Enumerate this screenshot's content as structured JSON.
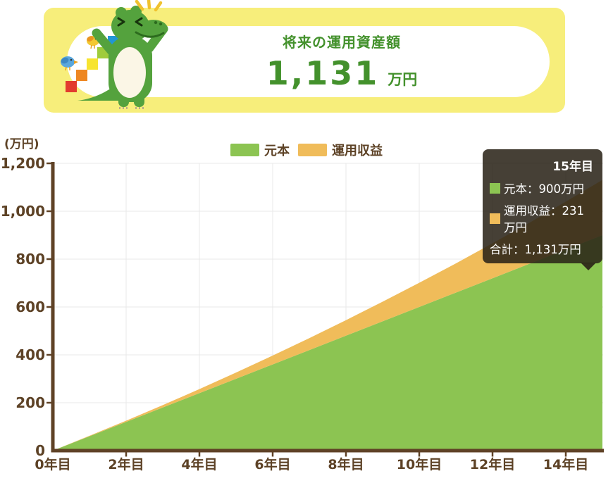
{
  "banner": {
    "title": "将来の運用資産額",
    "amount": "1,131",
    "unit": "万円",
    "bg_color": "#f7ee7b",
    "text_color": "#43912c"
  },
  "icons": {
    "mascot": "crocodile-climbing-colored-stairs",
    "mascot_extras": [
      "blue-bird",
      "yellow-bird",
      "excitement-sparkles"
    ]
  },
  "chart_data": {
    "type": "area",
    "stacked": true,
    "unit_label": "(万円)",
    "x_years": [
      0,
      1,
      2,
      3,
      4,
      5,
      6,
      7,
      8,
      9,
      10,
      11,
      12,
      13,
      14,
      15
    ],
    "series": [
      {
        "name": "元本",
        "color": "#8cc452",
        "values": [
          0,
          60,
          120,
          180,
          240,
          300,
          360,
          420,
          480,
          540,
          600,
          660,
          720,
          780,
          840,
          900
        ]
      },
      {
        "name": "運用収益",
        "color": "#f0bc5a",
        "values": [
          0,
          2,
          5,
          10,
          17,
          26,
          37,
          50,
          65,
          82,
          101,
          122,
          146,
          171,
          200,
          231
        ]
      }
    ],
    "legend": [
      {
        "label": "元本",
        "color": "#8cc452"
      },
      {
        "label": "運用収益",
        "color": "#f0bc5a"
      }
    ],
    "x_tick_years": [
      0,
      2,
      4,
      6,
      8,
      10,
      12,
      14
    ],
    "x_tick_suffix": "年目",
    "y_ticks": [
      0,
      200,
      400,
      600,
      800,
      1000,
      1200
    ],
    "xlim": [
      0,
      15
    ],
    "ylim": [
      0,
      1200
    ],
    "grid": true,
    "legend_position": "top"
  },
  "tooltip": {
    "title": "15年目",
    "rows": [
      {
        "name": "元本",
        "swatch_color": "#8cc452",
        "text": "元本：900万円"
      },
      {
        "name": "運用収益",
        "swatch_color": "#f0bc5a",
        "text": "運用収益：231万円"
      }
    ],
    "total": "合計：1,131万円",
    "bg_color": "rgba(43,36,24,0.87)"
  },
  "colors": {
    "axis_brown": "#5f4226",
    "label_brown": "#5d4226",
    "grid_line": "#e8e8e8",
    "principal_green": "#8cc452",
    "profit_orange": "#f0bc5a",
    "croc_green": "#54a23d",
    "croc_dark": "#2c6b1e"
  }
}
